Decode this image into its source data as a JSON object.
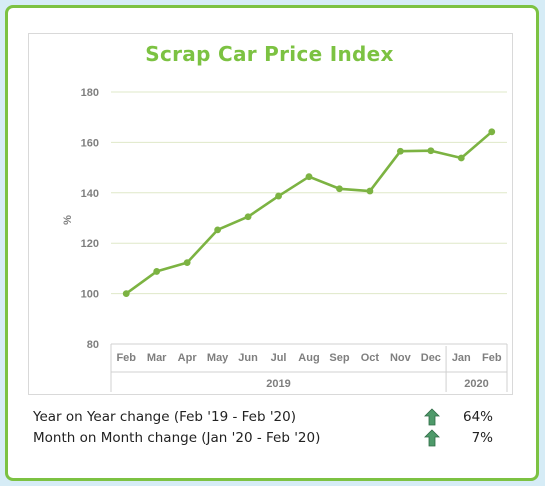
{
  "chart_data": {
    "type": "line",
    "title": "Scrap Car Price Index",
    "ylabel": "%",
    "xlabel": "",
    "ylim": [
      80,
      180
    ],
    "yticks": [
      80,
      100,
      120,
      140,
      160,
      180
    ],
    "grid": true,
    "categories": [
      "Feb",
      "Mar",
      "Apr",
      "May",
      "Jun",
      "Jul",
      "Aug",
      "Sep",
      "Oct",
      "Nov",
      "Dec",
      "Jan",
      "Feb"
    ],
    "year_groups": [
      {
        "label": "2019",
        "count": 11
      },
      {
        "label": "2020",
        "count": 2
      }
    ],
    "series": [
      {
        "values": [
          100,
          108.8,
          112.3,
          125.3,
          130.5,
          138.7,
          146.4,
          141.6,
          140.7,
          156.5,
          156.7,
          153.8,
          164.2
        ],
        "color": "#7cb342"
      }
    ]
  },
  "summary": {
    "rows": [
      {
        "label": "Year on Year change (Feb '19 - Feb '20)",
        "value": "64%",
        "icon": "up-arrow-icon"
      },
      {
        "label": "Month on Month change (Jan '20 - Feb '20)",
        "value": "7%",
        "icon": "up-arrow-icon"
      }
    ],
    "arrow_color": "#4e9a6a"
  },
  "colors": {
    "accent": "#7cc242",
    "border": "#7cc242",
    "background": "#d6ecf6"
  }
}
